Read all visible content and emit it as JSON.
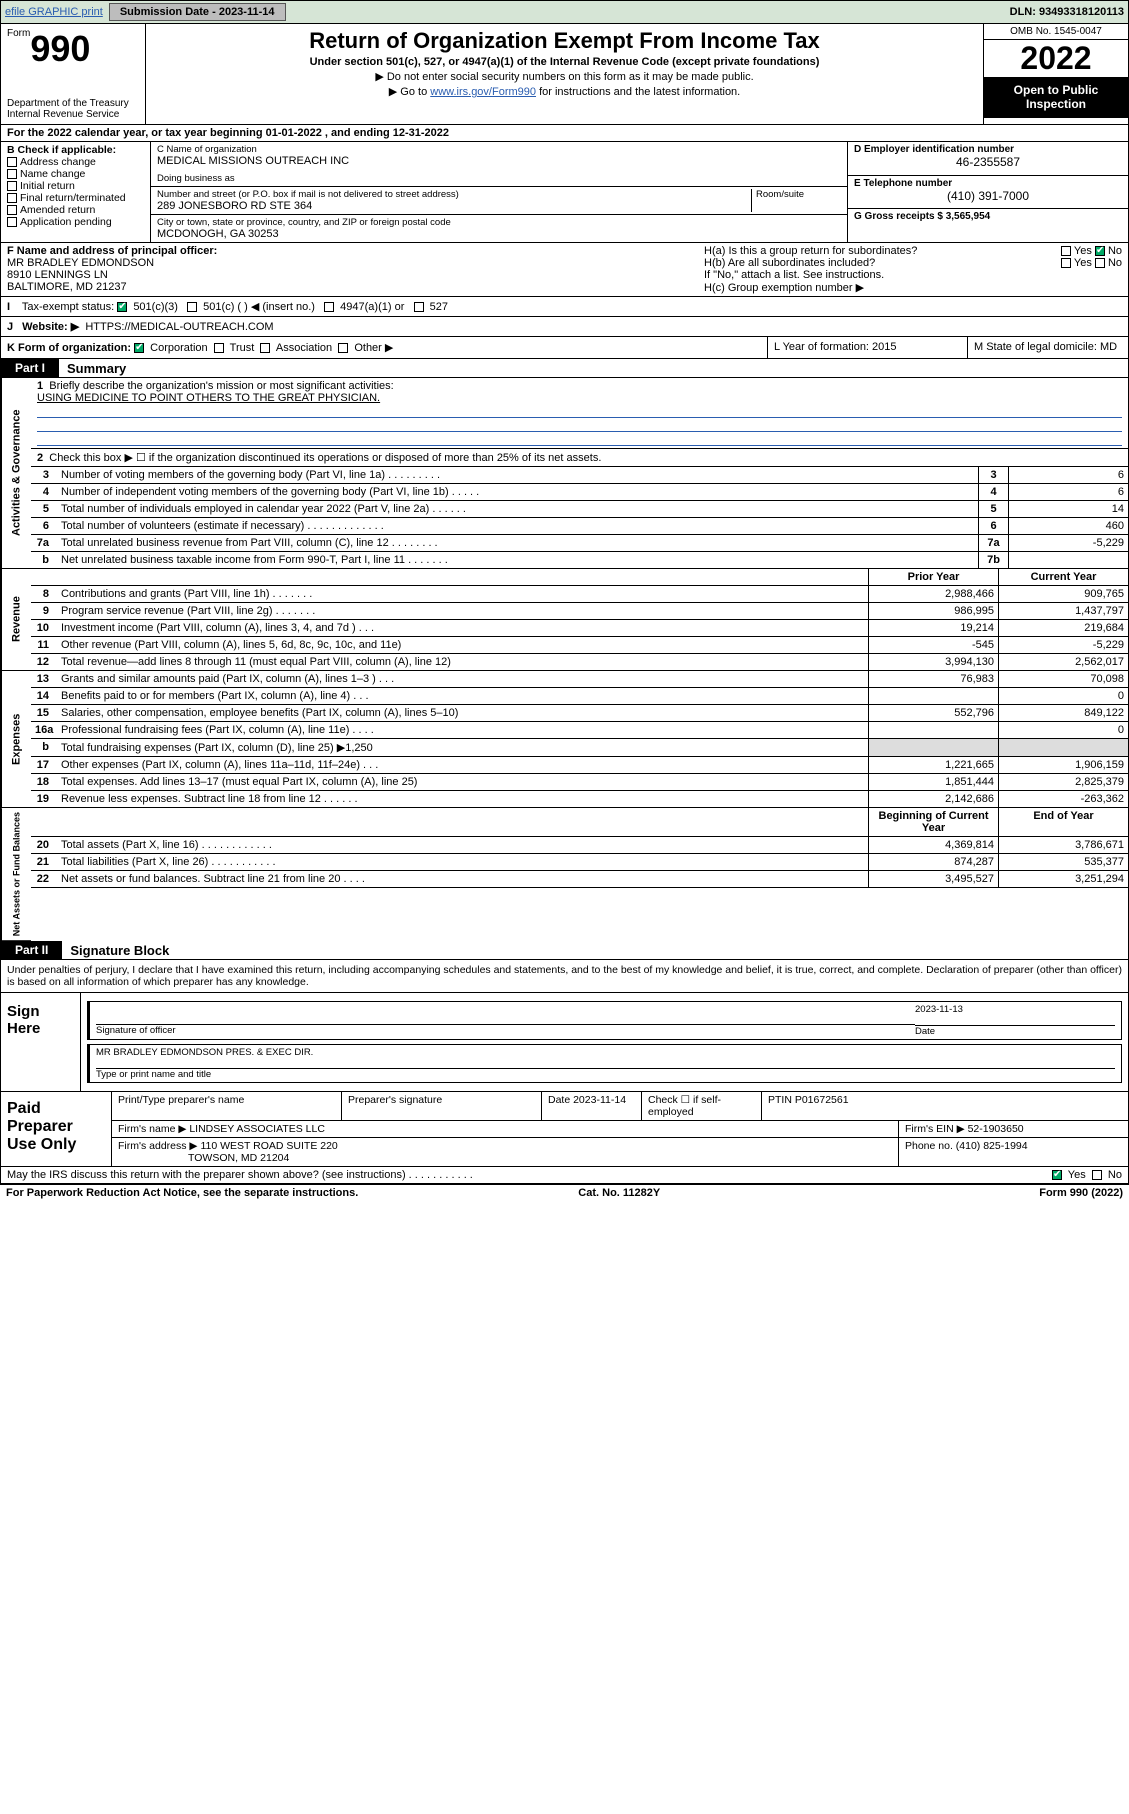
{
  "topbar": {
    "efile_label": "efile GRAPHIC print",
    "submission_label": "Submission Date - 2023-11-14",
    "dln_label": "DLN: 93493318120113"
  },
  "header": {
    "form_word": "Form",
    "form_number": "990",
    "dept": "Department of the Treasury Internal Revenue Service",
    "title": "Return of Organization Exempt From Income Tax",
    "subtitle": "Under section 501(c), 527, or 4947(a)(1) of the Internal Revenue Code (except private foundations)",
    "warn1": "▶ Do not enter social security numbers on this form as it may be made public.",
    "warn2_pre": "▶ Go to ",
    "warn2_link": "www.irs.gov/Form990",
    "warn2_post": " for instructions and the latest information.",
    "omb": "OMB No. 1545-0047",
    "year": "2022",
    "inspect": "Open to Public Inspection"
  },
  "line_a": "For the 2022 calendar year, or tax year beginning 01-01-2022   , and ending 12-31-2022",
  "check_b": {
    "label": "B Check if applicable:",
    "opts": [
      "Address change",
      "Name change",
      "Initial return",
      "Final return/terminated",
      "Amended return",
      "Application pending"
    ]
  },
  "col_c": {
    "name_label": "C Name of organization",
    "name": "MEDICAL MISSIONS OUTREACH INC",
    "dba_label": "Doing business as",
    "addr_label": "Number and street (or P.O. box if mail is not delivered to street address)",
    "room_label": "Room/suite",
    "addr": "289 JONESBORO RD STE 364",
    "city_label": "City or town, state or province, country, and ZIP or foreign postal code",
    "city": "MCDONOGH, GA  30253"
  },
  "col_right": {
    "ein_label": "D Employer identification number",
    "ein": "46-2355587",
    "phone_label": "E Telephone number",
    "phone": "(410) 391-7000",
    "gross_label": "G Gross receipts $ 3,565,954"
  },
  "section_f": {
    "label": "F Name and address of principal officer:",
    "name": "MR BRADLEY EDMONDSON",
    "addr1": "8910 LENNINGS LN",
    "addr2": "BALTIMORE, MD  21237",
    "ha": "H(a)  Is this a group return for subordinates?",
    "hb": "H(b)  Are all subordinates included?",
    "hnote": "If \"No,\" attach a list. See instructions.",
    "hc": "H(c)  Group exemption number ▶",
    "yes": "Yes",
    "no": "No"
  },
  "line_i": {
    "label": "Tax-exempt status:",
    "opts": [
      "501(c)(3)",
      "501(c) (  ) ◀ (insert no.)",
      "4947(a)(1) or",
      "527"
    ]
  },
  "line_j": {
    "label": "Website: ▶",
    "value": "HTTPS://MEDICAL-OUTREACH.COM"
  },
  "line_k": {
    "label": "K Form of organization:",
    "opts": [
      "Corporation",
      "Trust",
      "Association",
      "Other ▶"
    ],
    "l_label": "L Year of formation: 2015",
    "m_label": "M State of legal domicile: MD"
  },
  "part1": {
    "hdr": "Part I",
    "title": "Summary",
    "brief_label": "Briefly describe the organization's mission or most significant activities:",
    "brief": "USING MEDICINE TO POINT OTHERS TO THE GREAT PHYSICIAN.",
    "line2": "Check this box ▶ ☐  if the organization discontinued its operations or disposed of more than 25% of its net assets."
  },
  "gov_lines": [
    {
      "n": "3",
      "t": "Number of voting members of the governing body (Part VI, line 1a)  .   .   .   .   .   .   .   .   .",
      "b": "3",
      "v": "6"
    },
    {
      "n": "4",
      "t": "Number of independent voting members of the governing body (Part VI, line 1b)  .   .   .   .   .",
      "b": "4",
      "v": "6"
    },
    {
      "n": "5",
      "t": "Total number of individuals employed in calendar year 2022 (Part V, line 2a)  .   .   .   .   .   .",
      "b": "5",
      "v": "14"
    },
    {
      "n": "6",
      "t": "Total number of volunteers (estimate if necessary)  .   .   .   .   .   .   .   .   .   .   .   .   .",
      "b": "6",
      "v": "460"
    },
    {
      "n": "7a",
      "t": "Total unrelated business revenue from Part VIII, column (C), line 12  .   .   .   .   .   .   .   .",
      "b": "7a",
      "v": "-5,229"
    },
    {
      "n": "b",
      "t": "Net unrelated business taxable income from Form 990-T, Part I, line 11  .   .   .   .   .   .   .",
      "b": "7b",
      "v": ""
    }
  ],
  "rev_hdr": {
    "prior": "Prior Year",
    "curr": "Current Year"
  },
  "rev_lines": [
    {
      "n": "8",
      "t": "Contributions and grants (Part VIII, line 1h)  .   .   .   .   .   .   .",
      "p": "2,988,466",
      "c": "909,765"
    },
    {
      "n": "9",
      "t": "Program service revenue (Part VIII, line 2g)  .   .   .   .   .   .   .",
      "p": "986,995",
      "c": "1,437,797"
    },
    {
      "n": "10",
      "t": "Investment income (Part VIII, column (A), lines 3, 4, and 7d )  .   .   .",
      "p": "19,214",
      "c": "219,684"
    },
    {
      "n": "11",
      "t": "Other revenue (Part VIII, column (A), lines 5, 6d, 8c, 9c, 10c, and 11e)",
      "p": "-545",
      "c": "-5,229"
    },
    {
      "n": "12",
      "t": "Total revenue—add lines 8 through 11 (must equal Part VIII, column (A), line 12)",
      "p": "3,994,130",
      "c": "2,562,017"
    }
  ],
  "exp_lines": [
    {
      "n": "13",
      "t": "Grants and similar amounts paid (Part IX, column (A), lines 1–3 )  .   .   .",
      "p": "76,983",
      "c": "70,098"
    },
    {
      "n": "14",
      "t": "Benefits paid to or for members (Part IX, column (A), line 4)  .   .   .",
      "p": "",
      "c": "0"
    },
    {
      "n": "15",
      "t": "Salaries, other compensation, employee benefits (Part IX, column (A), lines 5–10)",
      "p": "552,796",
      "c": "849,122"
    },
    {
      "n": "16a",
      "t": "Professional fundraising fees (Part IX, column (A), line 11e)  .   .   .   .",
      "p": "",
      "c": "0"
    },
    {
      "n": "b",
      "t": "Total fundraising expenses (Part IX, column (D), line 25) ▶1,250",
      "p": "",
      "c": "",
      "gray": true
    },
    {
      "n": "17",
      "t": "Other expenses (Part IX, column (A), lines 11a–11d, 11f–24e)  .   .   .",
      "p": "1,221,665",
      "c": "1,906,159"
    },
    {
      "n": "18",
      "t": "Total expenses. Add lines 13–17 (must equal Part IX, column (A), line 25)",
      "p": "1,851,444",
      "c": "2,825,379"
    },
    {
      "n": "19",
      "t": "Revenue less expenses. Subtract line 18 from line 12  .   .   .   .   .   .",
      "p": "2,142,686",
      "c": "-263,362"
    }
  ],
  "net_hdr": {
    "prior": "Beginning of Current Year",
    "curr": "End of Year"
  },
  "net_lines": [
    {
      "n": "20",
      "t": "Total assets (Part X, line 16)  .   .   .   .   .   .   .   .   .   .   .   .",
      "p": "4,369,814",
      "c": "3,786,671"
    },
    {
      "n": "21",
      "t": "Total liabilities (Part X, line 26)  .   .   .   .   .   .   .   .   .   .   .",
      "p": "874,287",
      "c": "535,377"
    },
    {
      "n": "22",
      "t": "Net assets or fund balances. Subtract line 21 from line 20  .   .   .   .",
      "p": "3,495,527",
      "c": "3,251,294"
    }
  ],
  "part2": {
    "hdr": "Part II",
    "title": "Signature Block",
    "penalty": "Under penalties of perjury, I declare that I have examined this return, including accompanying schedules and statements, and to the best of my knowledge and belief, it is true, correct, and complete. Declaration of preparer (other than officer) is based on all information of which preparer has any knowledge."
  },
  "sign": {
    "side": "Sign Here",
    "sig_label": "Signature of officer",
    "date_label": "Date",
    "date": "2023-11-13",
    "name": "MR BRADLEY EDMONDSON  PRES. & EXEC DIR.",
    "name_label": "Type or print name and title"
  },
  "paid": {
    "side": "Paid Preparer Use Only",
    "r1": [
      "Print/Type preparer's name",
      "Preparer's signature",
      "Date 2023-11-14",
      "Check ☐ if self-employed",
      "PTIN P01672561"
    ],
    "firm_label": "Firm's name    ▶",
    "firm": "LINDSEY ASSOCIATES LLC",
    "ein_label": "Firm's EIN ▶ 52-1903650",
    "addr_label": "Firm's address ▶",
    "addr": "110 WEST ROAD SUITE 220",
    "addr2": "TOWSON, MD  21204",
    "phone": "Phone no. (410) 825-1994"
  },
  "irs_line": "May the IRS discuss this return with the preparer shown above? (see instructions)  .   .   .   .   .   .   .   .   .   .   .",
  "footer": {
    "left": "For Paperwork Reduction Act Notice, see the separate instructions.",
    "mid": "Cat. No. 11282Y",
    "right": "Form 990 (2022)"
  },
  "vtabs": {
    "gov": "Activities & Governance",
    "rev": "Revenue",
    "exp": "Expenses",
    "net": "Net Assets or Fund Balances"
  }
}
